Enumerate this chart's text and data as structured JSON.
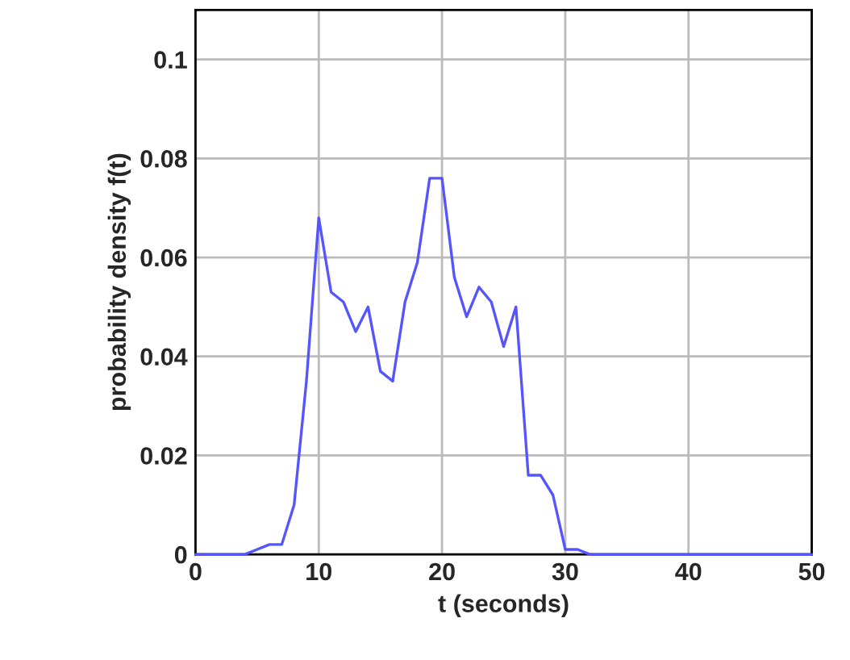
{
  "chart_data": {
    "type": "line",
    "xlabel": "t (seconds)",
    "ylabel": "probability density f(t)",
    "x": [
      0,
      1,
      2,
      3,
      4,
      5,
      6,
      7,
      8,
      9,
      10,
      11,
      12,
      13,
      14,
      15,
      16,
      17,
      18,
      19,
      20,
      21,
      22,
      23,
      24,
      25,
      26,
      27,
      28,
      29,
      30,
      31,
      32,
      35,
      40,
      45,
      50
    ],
    "series": [
      {
        "color": "#5555ff",
        "values": [
          0,
          0,
          0,
          0,
          0,
          0.001,
          0.002,
          0.002,
          0.01,
          0.035,
          0.068,
          0.053,
          0.051,
          0.045,
          0.05,
          0.037,
          0.035,
          0.051,
          0.059,
          0.076,
          0.076,
          0.056,
          0.048,
          0.054,
          0.051,
          0.042,
          0.05,
          0.016,
          0.016,
          0.012,
          0.001,
          0.001,
          0,
          0,
          0,
          0,
          0
        ]
      }
    ],
    "xlim": [
      0,
      50
    ],
    "xticks": [
      0,
      10,
      20,
      30,
      40,
      50
    ],
    "ylim": [
      0,
      0.11
    ],
    "yticks": [
      0,
      0.02,
      0.04,
      0.06,
      0.08,
      0.1
    ],
    "grid": true,
    "legend": false
  }
}
